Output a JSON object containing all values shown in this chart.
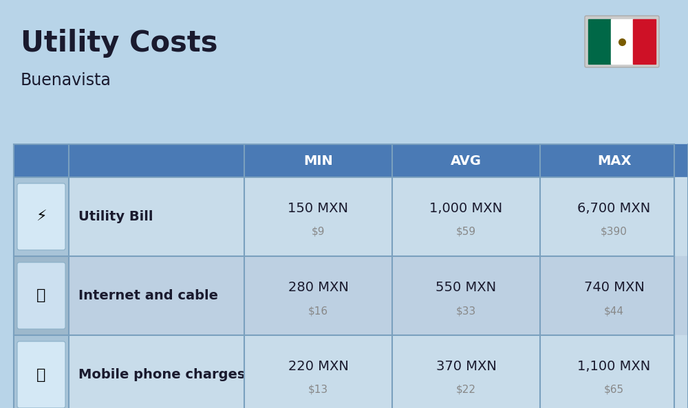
{
  "title": "Utility Costs",
  "subtitle": "Buenavista",
  "background_color": "#b8d4e8",
  "header_color": "#4a7ab5",
  "header_text_color": "#ffffff",
  "row_bg_odd": "#c8dcea",
  "row_bg_even": "#bdd0e2",
  "icon_col_bg_odd": "#a8c4d8",
  "icon_col_bg_even": "#9db8cc",
  "rows": [
    {
      "label": "Utility Bill",
      "min_mxn": "150 MXN",
      "min_usd": "$9",
      "avg_mxn": "1,000 MXN",
      "avg_usd": "$59",
      "max_mxn": "6,700 MXN",
      "max_usd": "$390"
    },
    {
      "label": "Internet and cable",
      "min_mxn": "280 MXN",
      "min_usd": "$16",
      "avg_mxn": "550 MXN",
      "avg_usd": "$33",
      "max_mxn": "740 MXN",
      "max_usd": "$44"
    },
    {
      "label": "Mobile phone charges",
      "min_mxn": "220 MXN",
      "min_usd": "$13",
      "avg_mxn": "370 MXN",
      "avg_usd": "$22",
      "max_mxn": "1,100 MXN",
      "max_usd": "$65"
    }
  ],
  "col_headers": [
    "MIN",
    "AVG",
    "MAX"
  ],
  "title_fontsize": 30,
  "subtitle_fontsize": 17,
  "header_fontsize": 14,
  "label_fontsize": 14,
  "value_fontsize": 14,
  "usd_fontsize": 11,
  "text_color": "#1a1a2e",
  "usd_color": "#888888",
  "line_color": "#7aa0be"
}
